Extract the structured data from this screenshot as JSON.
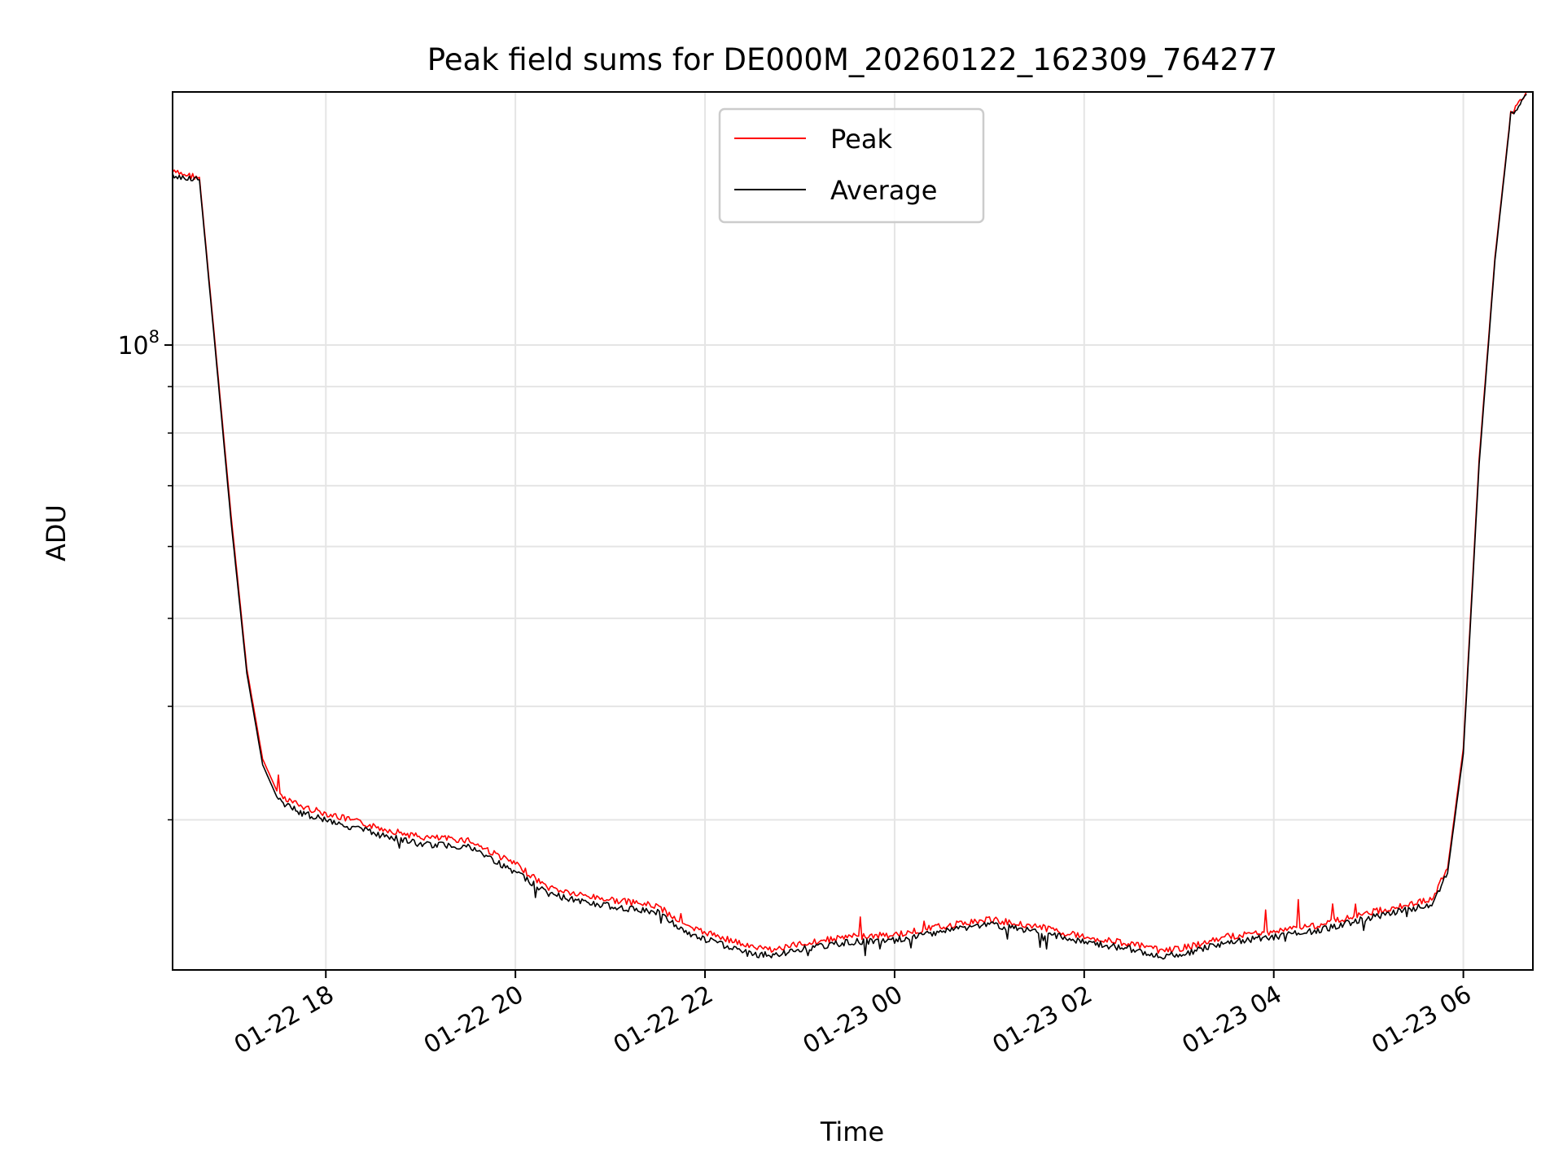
{
  "chart_data": {
    "type": "line",
    "title": "Peak field sums for DE000M_20260122_162309_764277",
    "xlabel": "Time",
    "ylabel": "ADU",
    "yscale": "log",
    "grid": true,
    "legend_position": "top-center",
    "xlim": [
      "2026-01-22 16:23",
      "2026-01-23 06:44"
    ],
    "ylim": [
      20500000,
      190000000
    ],
    "xticks": [
      {
        "value": "2026-01-22 18:00",
        "label": "01-22 18"
      },
      {
        "value": "2026-01-22 20:00",
        "label": "01-22 20"
      },
      {
        "value": "2026-01-22 22:00",
        "label": "01-22 22"
      },
      {
        "value": "2026-01-23 00:00",
        "label": "01-23 00"
      },
      {
        "value": "2026-01-23 02:00",
        "label": "01-23 02"
      },
      {
        "value": "2026-01-23 04:00",
        "label": "01-23 04"
      },
      {
        "value": "2026-01-23 06:00",
        "label": "01-23 06"
      }
    ],
    "yticks": [
      {
        "value": 100000000,
        "base": "10",
        "exp": "8"
      }
    ],
    "series": [
      {
        "name": "Peak",
        "color": "#ff0000",
        "x": [
          "2026-01-22 16:23",
          "2026-01-22 16:40",
          "2026-01-22 16:50",
          "2026-01-22 17:00",
          "2026-01-22 17:10",
          "2026-01-22 17:20",
          "2026-01-22 17:30",
          "2026-01-22 17:45",
          "2026-01-22 18:00",
          "2026-01-22 18:30",
          "2026-01-22 19:00",
          "2026-01-22 19:30",
          "2026-01-22 20:00",
          "2026-01-22 20:20",
          "2026-01-22 20:40",
          "2026-01-22 21:00",
          "2026-01-22 21:30",
          "2026-01-22 21:50",
          "2026-01-22 22:10",
          "2026-01-22 22:30",
          "2026-01-22 22:45",
          "2026-01-22 23:00",
          "2026-01-22 23:30",
          "2026-01-23 00:00",
          "2026-01-23 00:30",
          "2026-01-23 01:00",
          "2026-01-23 01:30",
          "2026-01-23 02:00",
          "2026-01-23 02:30",
          "2026-01-23 02:50",
          "2026-01-23 03:10",
          "2026-01-23 03:30",
          "2026-01-23 04:00",
          "2026-01-23 04:30",
          "2026-01-23 05:00",
          "2026-01-23 05:20",
          "2026-01-23 05:40",
          "2026-01-23 05:50",
          "2026-01-23 06:00",
          "2026-01-23 06:10",
          "2026-01-23 06:20",
          "2026-01-23 06:30",
          "2026-01-23 06:40"
        ],
        "y": [
          155000000,
          153000000,
          100000000,
          65000000,
          44000000,
          35000000,
          32000000,
          31000000,
          30500000,
          29500000,
          28700000,
          28500000,
          26800000,
          25300000,
          24800000,
          24500000,
          24100000,
          22800000,
          22300000,
          21700000,
          21600000,
          21900000,
          22300000,
          22400000,
          22900000,
          23300000,
          22900000,
          22300000,
          21900000,
          21500000,
          21800000,
          22300000,
          22600000,
          23000000,
          23700000,
          24100000,
          24500000,
          26500000,
          36000000,
          75000000,
          125000000,
          180000000,
          190000000
        ]
      },
      {
        "name": "Average",
        "color": "#000000",
        "x": [
          "2026-01-22 16:23",
          "2026-01-22 16:40",
          "2026-01-22 16:50",
          "2026-01-22 17:00",
          "2026-01-22 17:10",
          "2026-01-22 17:20",
          "2026-01-22 17:30",
          "2026-01-22 17:45",
          "2026-01-22 18:00",
          "2026-01-22 18:30",
          "2026-01-22 19:00",
          "2026-01-22 19:30",
          "2026-01-22 20:00",
          "2026-01-22 20:20",
          "2026-01-22 20:40",
          "2026-01-22 21:00",
          "2026-01-22 21:30",
          "2026-01-22 21:50",
          "2026-01-22 22:10",
          "2026-01-22 22:30",
          "2026-01-22 22:45",
          "2026-01-22 23:00",
          "2026-01-22 23:30",
          "2026-01-23 00:00",
          "2026-01-23 00:30",
          "2026-01-23 01:00",
          "2026-01-23 01:30",
          "2026-01-23 02:00",
          "2026-01-23 02:30",
          "2026-01-23 02:50",
          "2026-01-23 03:10",
          "2026-01-23 03:30",
          "2026-01-23 04:00",
          "2026-01-23 04:30",
          "2026-01-23 05:00",
          "2026-01-23 05:20",
          "2026-01-23 05:40",
          "2026-01-23 05:50",
          "2026-01-23 06:00",
          "2026-01-23 06:10",
          "2026-01-23 06:20",
          "2026-01-23 06:30",
          "2026-01-23 06:40"
        ],
        "y": [
          154000000,
          152000000,
          99000000,
          64000000,
          43500000,
          34500000,
          31500000,
          30500000,
          30000000,
          29000000,
          28200000,
          28000000,
          26300000,
          24900000,
          24400000,
          24100000,
          23700000,
          22400000,
          21900000,
          21300000,
          21300000,
          21600000,
          22000000,
          22100000,
          22600000,
          23000000,
          22600000,
          22000000,
          21600000,
          21200000,
          21500000,
          22000000,
          22300000,
          22700000,
          23400000,
          23800000,
          24200000,
          26200000,
          35500000,
          74000000,
          124000000,
          179000000,
          189000000
        ]
      }
    ]
  }
}
